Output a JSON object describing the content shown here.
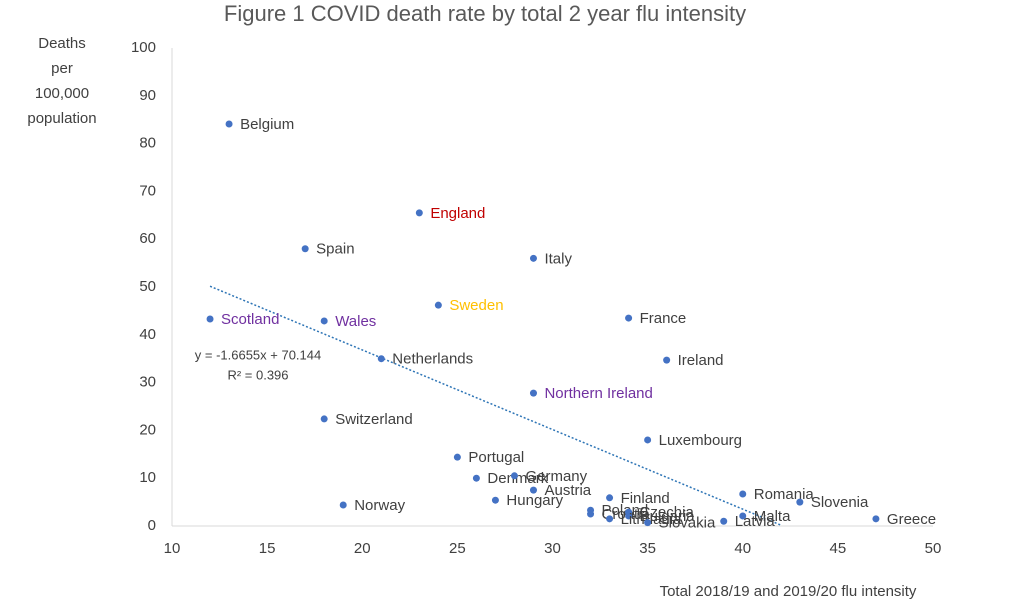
{
  "chart_data": {
    "type": "scatter",
    "title": "Figure 1 COVID death rate by total 2 year flu intensity",
    "xlabel": "Total 2018/19 and 2019/20 flu intensity",
    "ylabel": [
      "Deaths",
      "per",
      "100,000",
      "population"
    ],
    "xlim": [
      10,
      50
    ],
    "xticks": [
      10,
      15,
      20,
      25,
      30,
      35,
      40,
      45,
      50
    ],
    "ylim": [
      0,
      100
    ],
    "yticks": [
      0,
      10,
      20,
      30,
      40,
      50,
      60,
      70,
      80,
      90,
      100
    ],
    "color": "#4472c4",
    "labels": [
      "Belgium",
      "England",
      "Spain",
      "Italy",
      "Sweden",
      "France",
      "Scotland",
      "Wales",
      "Netherlands",
      "Ireland",
      "Northern Ireland",
      "Switzerland",
      "Luxembourg",
      "Portugal",
      "Denmark",
      "Germany",
      "Austria",
      "Hungary",
      "Finland",
      "Romania",
      "Slovenia",
      "Norway",
      "Malta",
      "Greece",
      "Latvia",
      "Poland",
      "Croatia",
      "Czechia",
      "Bulgaria",
      "Lithuania",
      "Slovakia"
    ],
    "x": [
      13,
      23,
      17,
      29,
      24,
      34,
      12,
      18,
      21,
      36,
      29,
      18,
      35,
      25,
      26,
      28,
      29,
      27,
      33,
      40,
      43,
      19,
      40,
      47,
      39,
      32,
      32,
      34,
      34,
      33,
      35
    ],
    "values": [
      84.1,
      65.5,
      58,
      56,
      46.2,
      43.5,
      43.3,
      42.9,
      35,
      34.7,
      27.8,
      22.4,
      18,
      14.4,
      10,
      10.5,
      7.5,
      5.4,
      5.9,
      6.7,
      5,
      4.4,
      2.1,
      1.5,
      1,
      3.3,
      2.5,
      2.9,
      2.1,
      1.5,
      0.7
    ],
    "label_colors": [
      "#404040",
      "#c00000",
      "#404040",
      "#404040",
      "#ffc000",
      "#404040",
      "#7030a0",
      "#7030a0",
      "#404040",
      "#404040",
      "#7030a0",
      "#404040",
      "#404040",
      "#404040",
      "#404040",
      "#404040",
      "#404040",
      "#404040",
      "#404040",
      "#404040",
      "#404040",
      "#404040",
      "#404040",
      "#404040",
      "#404040",
      "#404040",
      "#404040",
      "#404040",
      "#404040",
      "#404040",
      "#404040"
    ],
    "trendline": {
      "slope": -1.6655,
      "intercept": 70.144,
      "x_range": [
        12,
        42
      ],
      "color": "#2e75b6",
      "label": "y = -1.6655x + 70.144",
      "r2_label": "R² = 0.396"
    }
  }
}
